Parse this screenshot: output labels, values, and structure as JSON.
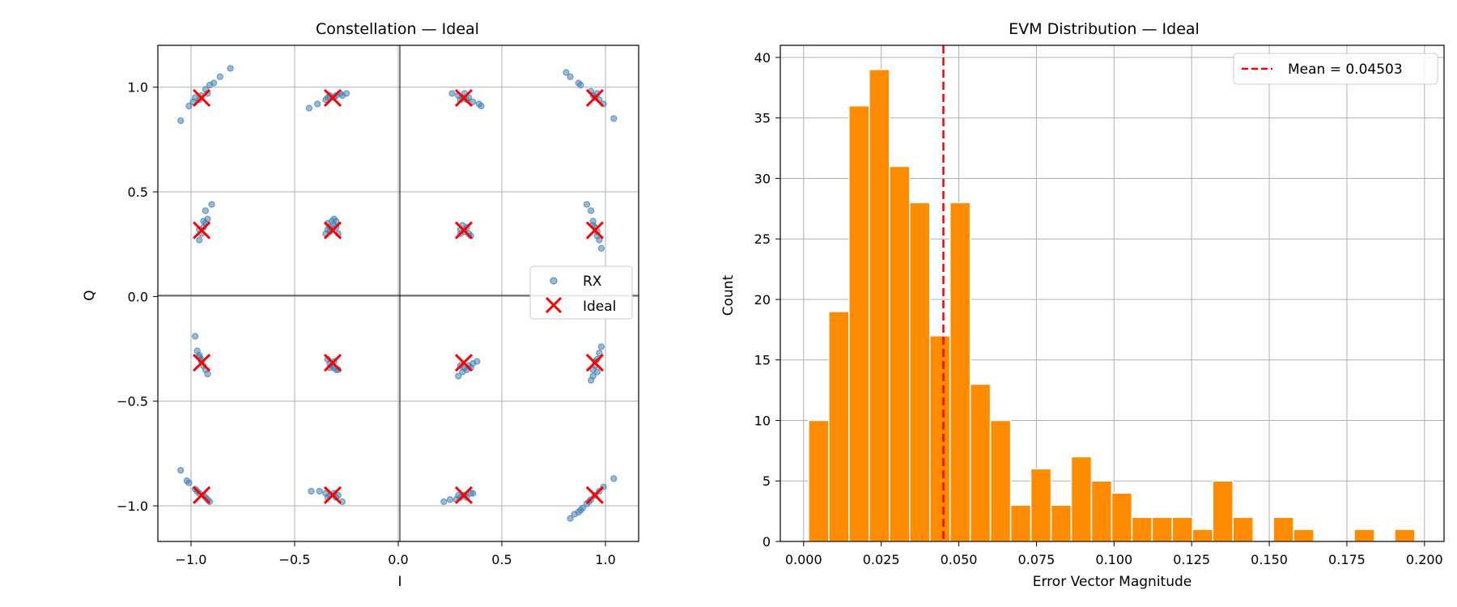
{
  "chart_data": [
    {
      "type": "scatter",
      "title": "Constellation — Ideal",
      "xlabel": "I",
      "ylabel": "Q",
      "xlim": [
        -1.16,
        1.16
      ],
      "ylim": [
        -1.17,
        1.2
      ],
      "xticks": [
        -1.0,
        -0.5,
        0.0,
        0.5,
        1.0
      ],
      "xtick_labels": [
        "−1.0",
        "−0.5",
        "0.0",
        "0.5",
        "1.0"
      ],
      "yticks": [
        -1.0,
        -0.5,
        0.0,
        0.5,
        1.0
      ],
      "ytick_labels": [
        "−1.0",
        "−0.5",
        "0.0",
        "0.5",
        "1.0"
      ],
      "grid": true,
      "legend": {
        "position": "center-right",
        "entries": [
          "RX",
          "Ideal"
        ]
      },
      "colors": {
        "rx": "#4682b4",
        "ideal": "#ff0000"
      },
      "ideal_levels": [
        -0.9487,
        -0.3162,
        0.3162,
        0.9487
      ],
      "rx_points": [
        [
          -0.96,
          0.94
        ],
        [
          -0.99,
          0.93
        ],
        [
          -1.01,
          0.91
        ],
        [
          -0.93,
          0.99
        ],
        [
          -0.91,
          1.01
        ],
        [
          -0.89,
          1.02
        ],
        [
          -0.86,
          1.05
        ],
        [
          -0.81,
          1.09
        ],
        [
          -1.05,
          0.84
        ],
        [
          -0.95,
          0.96
        ],
        [
          -0.92,
          0.97
        ],
        [
          -0.98,
          0.95
        ],
        [
          -0.43,
          0.9
        ],
        [
          -0.39,
          0.92
        ],
        [
          -0.35,
          0.94
        ],
        [
          -0.33,
          0.96
        ],
        [
          -0.3,
          0.96
        ],
        [
          -0.28,
          0.97
        ],
        [
          -0.25,
          0.97
        ],
        [
          -0.34,
          0.95
        ],
        [
          -0.31,
          0.95
        ],
        [
          -0.27,
          0.96
        ],
        [
          0.26,
          0.97
        ],
        [
          0.29,
          0.96
        ],
        [
          0.31,
          0.95
        ],
        [
          0.33,
          0.94
        ],
        [
          0.36,
          0.93
        ],
        [
          0.39,
          0.92
        ],
        [
          0.4,
          0.91
        ],
        [
          0.3,
          0.94
        ],
        [
          0.34,
          0.95
        ],
        [
          0.32,
          0.97
        ],
        [
          0.81,
          1.07
        ],
        [
          0.83,
          1.05
        ],
        [
          0.87,
          1.02
        ],
        [
          0.88,
          1.01
        ],
        [
          0.93,
          0.98
        ],
        [
          0.95,
          0.95
        ],
        [
          0.97,
          0.94
        ],
        [
          0.99,
          0.92
        ],
        [
          1.04,
          0.85
        ],
        [
          0.96,
          0.97
        ],
        [
          0.94,
          0.96
        ],
        [
          -0.96,
          0.27
        ],
        [
          -0.95,
          0.3
        ],
        [
          -0.94,
          0.33
        ],
        [
          -0.93,
          0.35
        ],
        [
          -0.92,
          0.37
        ],
        [
          -0.93,
          0.41
        ],
        [
          -0.9,
          0.44
        ],
        [
          -0.96,
          0.32
        ],
        [
          -0.94,
          0.36
        ],
        [
          -0.35,
          0.3
        ],
        [
          -0.34,
          0.32
        ],
        [
          -0.33,
          0.33
        ],
        [
          -0.31,
          0.34
        ],
        [
          -0.3,
          0.36
        ],
        [
          -0.31,
          0.37
        ],
        [
          -0.32,
          0.36
        ],
        [
          -0.3,
          0.33
        ],
        [
          -0.33,
          0.31
        ],
        [
          -0.29,
          0.3
        ],
        [
          -0.34,
          0.35
        ],
        [
          0.3,
          0.32
        ],
        [
          0.32,
          0.31
        ],
        [
          0.34,
          0.3
        ],
        [
          0.35,
          0.29
        ],
        [
          0.31,
          0.34
        ],
        [
          0.33,
          0.33
        ],
        [
          0.3,
          0.3
        ],
        [
          0.91,
          0.44
        ],
        [
          0.93,
          0.41
        ],
        [
          0.94,
          0.36
        ],
        [
          0.95,
          0.33
        ],
        [
          0.96,
          0.29
        ],
        [
          0.97,
          0.27
        ],
        [
          0.98,
          0.23
        ],
        [
          0.96,
          0.31
        ],
        [
          0.94,
          0.34
        ],
        [
          -0.98,
          -0.19
        ],
        [
          -0.97,
          -0.26
        ],
        [
          -0.96,
          -0.28
        ],
        [
          -0.95,
          -0.3
        ],
        [
          -0.94,
          -0.33
        ],
        [
          -0.93,
          -0.35
        ],
        [
          -0.92,
          -0.37
        ],
        [
          -0.95,
          -0.31
        ],
        [
          -0.96,
          -0.29
        ],
        [
          -0.34,
          -0.3
        ],
        [
          -0.33,
          -0.32
        ],
        [
          -0.32,
          -0.33
        ],
        [
          -0.31,
          -0.34
        ],
        [
          -0.3,
          -0.35
        ],
        [
          -0.29,
          -0.35
        ],
        [
          -0.33,
          -0.34
        ],
        [
          -0.31,
          -0.31
        ],
        [
          0.29,
          -0.38
        ],
        [
          0.31,
          -0.36
        ],
        [
          0.33,
          -0.35
        ],
        [
          0.34,
          -0.33
        ],
        [
          0.36,
          -0.32
        ],
        [
          0.38,
          -0.31
        ],
        [
          0.32,
          -0.34
        ],
        [
          0.35,
          -0.34
        ],
        [
          0.3,
          -0.33
        ],
        [
          0.98,
          -0.24
        ],
        [
          0.97,
          -0.27
        ],
        [
          0.96,
          -0.3
        ],
        [
          0.95,
          -0.33
        ],
        [
          0.94,
          -0.35
        ],
        [
          0.94,
          -0.38
        ],
        [
          0.93,
          -0.4
        ],
        [
          0.95,
          -0.31
        ],
        [
          0.96,
          -0.36
        ],
        [
          -1.05,
          -0.83
        ],
        [
          -1.02,
          -0.88
        ],
        [
          -1.01,
          -0.89
        ],
        [
          -0.98,
          -0.92
        ],
        [
          -0.96,
          -0.94
        ],
        [
          -0.94,
          -0.95
        ],
        [
          -0.92,
          -0.97
        ],
        [
          -0.91,
          -0.98
        ],
        [
          -0.97,
          -0.93
        ],
        [
          -0.93,
          -0.96
        ],
        [
          -0.42,
          -0.93
        ],
        [
          -0.38,
          -0.93
        ],
        [
          -0.35,
          -0.94
        ],
        [
          -0.33,
          -0.95
        ],
        [
          -0.3,
          -0.96
        ],
        [
          -0.27,
          -0.98
        ],
        [
          -0.31,
          -0.94
        ],
        [
          -0.34,
          -0.96
        ],
        [
          -0.29,
          -0.95
        ],
        [
          0.22,
          -0.98
        ],
        [
          0.25,
          -0.97
        ],
        [
          0.28,
          -0.97
        ],
        [
          0.3,
          -0.96
        ],
        [
          0.32,
          -0.95
        ],
        [
          0.35,
          -0.94
        ],
        [
          0.36,
          -0.94
        ],
        [
          0.29,
          -0.95
        ],
        [
          0.33,
          -0.96
        ],
        [
          0.83,
          -1.06
        ],
        [
          0.85,
          -1.04
        ],
        [
          0.87,
          -1.03
        ],
        [
          0.89,
          -1.01
        ],
        [
          0.91,
          -0.99
        ],
        [
          0.93,
          -0.97
        ],
        [
          0.95,
          -0.95
        ],
        [
          0.97,
          -0.93
        ],
        [
          0.99,
          -0.91
        ],
        [
          1.04,
          -0.87
        ],
        [
          0.88,
          -1.02
        ],
        [
          0.92,
          -0.98
        ]
      ]
    },
    {
      "type": "bar",
      "title": "EVM Distribution — Ideal",
      "xlabel": "Error Vector Magnitude",
      "ylabel": "Count",
      "xlim": [
        -0.0075,
        0.2063
      ],
      "ylim": [
        0,
        41
      ],
      "xticks": [
        0.0,
        0.025,
        0.05,
        0.075,
        0.1,
        0.125,
        0.15,
        0.175,
        0.2
      ],
      "xtick_labels": [
        "0.000",
        "0.025",
        "0.050",
        "0.075",
        "0.100",
        "0.125",
        "0.150",
        "0.175",
        "0.200"
      ],
      "yticks": [
        0,
        5,
        10,
        15,
        20,
        25,
        30,
        35,
        40
      ],
      "ytick_labels": [
        "0",
        "5",
        "10",
        "15",
        "20",
        "25",
        "30",
        "35",
        "40"
      ],
      "grid": true,
      "bin_start": 0.0016,
      "bin_width": 0.00651,
      "counts": [
        10,
        19,
        36,
        39,
        31,
        28,
        17,
        28,
        13,
        10,
        3,
        6,
        3,
        7,
        5,
        4,
        2,
        2,
        2,
        1,
        5,
        2,
        0,
        2,
        1,
        0,
        0,
        1,
        0,
        1
      ],
      "bar_color": "#ff8c00",
      "mean": 0.04503,
      "mean_color": "#ff0000",
      "legend": {
        "position": "top-right",
        "entries": [
          "Mean = 0.04503"
        ]
      }
    }
  ]
}
